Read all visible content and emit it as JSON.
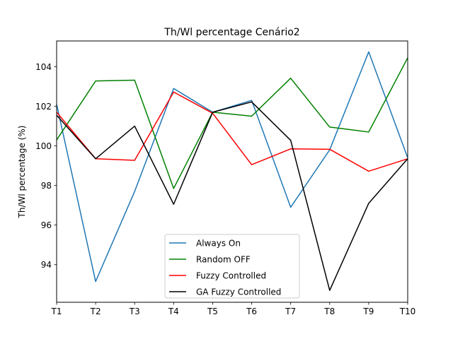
{
  "chart_data": {
    "type": "line",
    "title": "Th/Wl percentage Cenário2",
    "xlabel": "",
    "ylabel": "Th/Wl percentage (%)",
    "categories": [
      "T1",
      "T2",
      "T3",
      "T4",
      "T5",
      "T6",
      "T7",
      "T8",
      "T9",
      "T10"
    ],
    "ylim": [
      92.1,
      105.3
    ],
    "yticks": [
      94,
      96,
      98,
      100,
      102,
      104
    ],
    "grid": false,
    "legend_position": "lower center",
    "series": [
      {
        "name": "Always On",
        "color": "#1f77b4",
        "values": [
          102.1,
          93.15,
          97.7,
          102.9,
          101.7,
          102.3,
          96.9,
          99.8,
          104.75,
          99.4
        ]
      },
      {
        "name": "Random OFF",
        "color": "#008000",
        "values": [
          100.3,
          103.28,
          103.32,
          97.85,
          101.7,
          101.5,
          103.42,
          100.95,
          100.7,
          104.45
        ]
      },
      {
        "name": "Fuzzy Controlled",
        "color": "#ff0000",
        "values": [
          101.7,
          99.35,
          99.27,
          102.72,
          101.65,
          99.05,
          99.85,
          99.83,
          98.72,
          99.35
        ]
      },
      {
        "name": "GA Fuzzy Controlled",
        "color": "#000000",
        "values": [
          101.55,
          99.35,
          101.0,
          97.05,
          101.7,
          102.22,
          100.28,
          92.7,
          97.1,
          99.35
        ]
      }
    ]
  }
}
